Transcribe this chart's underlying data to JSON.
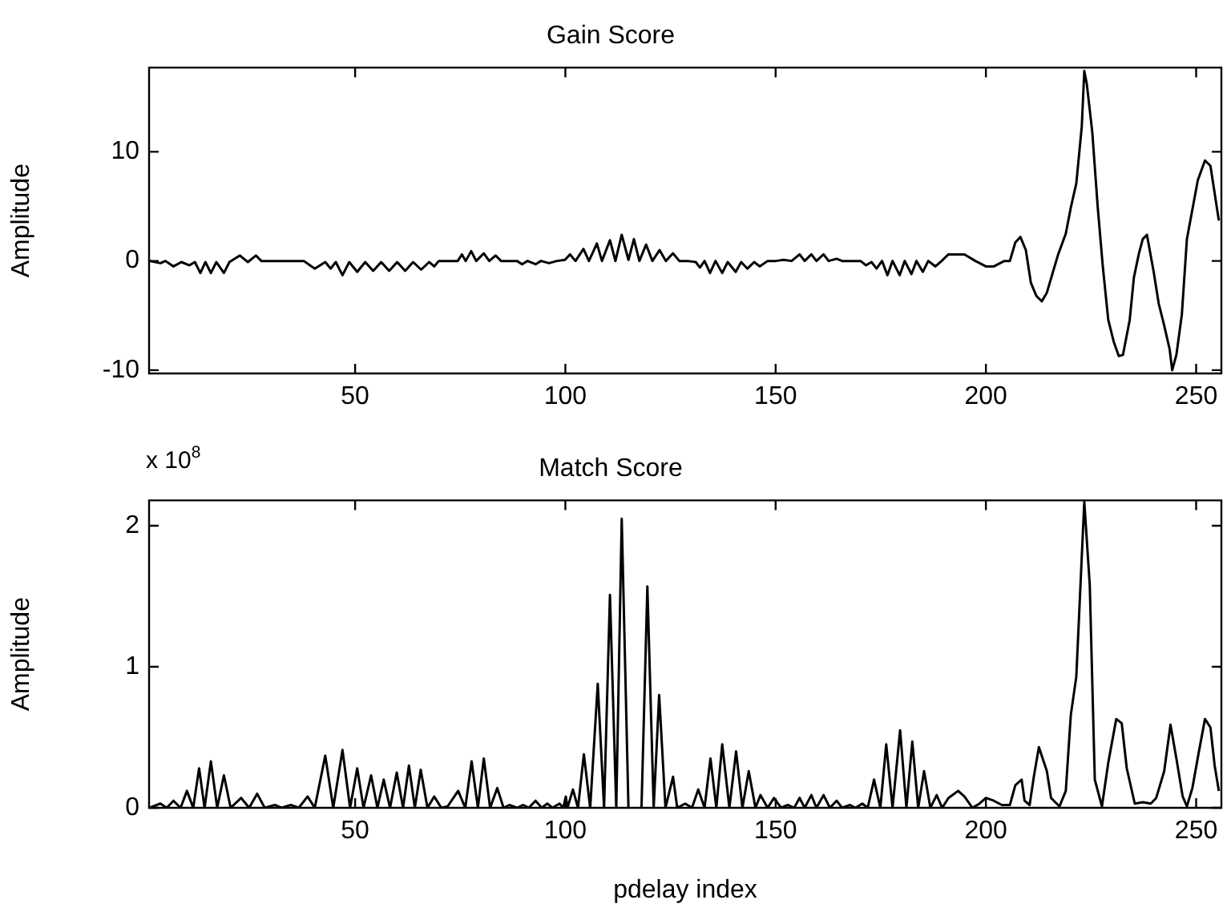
{
  "chart_data": [
    {
      "type": "line",
      "title": "Gain Score",
      "ylabel": "Amplitude",
      "color": "#000000",
      "xlim": [
        1,
        256
      ],
      "xticks": [
        50,
        100,
        150,
        200,
        250
      ],
      "ylim": [
        -10.3,
        17.7
      ],
      "yticks": [
        -10,
        0,
        10
      ],
      "x": [
        1.1,
        3.7,
        4.9,
        6.8,
        8.7,
        10.6,
        11.9,
        13.2,
        14.4,
        15.7,
        17,
        18.8,
        20.1,
        22.6,
        24.5,
        26.4,
        27.7,
        37.8,
        40.4,
        42.9,
        44.2,
        45.4,
        47,
        48.6,
        50.5,
        52.4,
        54.3,
        56.2,
        58.1,
        60,
        61.9,
        63.8,
        65.7,
        67.6,
        68.8,
        69.9,
        74.4,
        75.4,
        76.3,
        77.6,
        78.8,
        80.6,
        81.9,
        83.4,
        84.7,
        88.5,
        89.7,
        91,
        92.9,
        94.2,
        96.1,
        98,
        99.9,
        101.1,
        102.4,
        104.3,
        105.6,
        107.5,
        108.7,
        110.6,
        111.9,
        113.4,
        115,
        116.3,
        117.6,
        119.2,
        120.7,
        122.4,
        123.9,
        125.6,
        127.1,
        129,
        131,
        132,
        133.1,
        134.4,
        135.7,
        137.3,
        138.6,
        140.5,
        141.8,
        143.3,
        144.9,
        146.2,
        148.1,
        150,
        151.9,
        153.8,
        155.7,
        156.9,
        158.5,
        159.7,
        161.4,
        162.6,
        164.5,
        165.8,
        170.2,
        171.5,
        172.8,
        174,
        175.3,
        176.6,
        177.8,
        179.5,
        180.7,
        182.3,
        183.5,
        185,
        186.3,
        188,
        189.2,
        191.1,
        194.9,
        197.5,
        200,
        201.9,
        204.4,
        205.7,
        207,
        208.2,
        209.5,
        210.7,
        212,
        213.3,
        214.5,
        215.8,
        217.1,
        219,
        220.2,
        221.5,
        222.8,
        223.4,
        224,
        225.3,
        226.6,
        227.8,
        229.1,
        230.4,
        231.6,
        232.6,
        234.2,
        235.2,
        236.4,
        237.3,
        238.3,
        239.9,
        241.1,
        242.4,
        243.7,
        244.3,
        245.3,
        246.6,
        247.8,
        249.1,
        250.4,
        252.1,
        253.4,
        255.4
      ],
      "values": [
        0,
        -0.2,
        0,
        -0.5,
        -0.1,
        -0.4,
        -0.1,
        -1.1,
        -0.1,
        -1.1,
        -0.1,
        -1.1,
        -0.1,
        0.5,
        -0.1,
        0.5,
        0,
        0,
        -0.7,
        -0.1,
        -0.7,
        -0.1,
        -1.3,
        -0.1,
        -1,
        -0.1,
        -0.9,
        -0.1,
        -0.9,
        -0.1,
        -0.9,
        -0.1,
        -0.8,
        -0.1,
        -0.5,
        0,
        0,
        0.6,
        0,
        0.9,
        0,
        0.7,
        0,
        0.5,
        0,
        0,
        -0.3,
        0,
        -0.3,
        0,
        -0.2,
        0,
        0.1,
        0.6,
        0,
        1.1,
        0,
        1.6,
        0,
        1.9,
        0,
        2.4,
        0.1,
        2,
        0,
        1.5,
        0,
        1,
        0,
        0.7,
        0,
        0,
        -0.1,
        -0.6,
        0,
        -1.1,
        0,
        -1.1,
        -0.1,
        -1,
        -0.1,
        -0.7,
        -0.1,
        -0.5,
        0,
        0,
        0.1,
        0,
        0.6,
        0,
        0.6,
        0,
        0.6,
        0,
        0.2,
        0,
        0,
        -0.4,
        -0.1,
        -0.7,
        0,
        -1.3,
        0,
        -1.3,
        0,
        -1.2,
        0,
        -1,
        0,
        -0.5,
        -0.1,
        0.6,
        0.6,
        0,
        -0.5,
        -0.5,
        0,
        0,
        1.7,
        2.2,
        1,
        -2,
        -3.2,
        -3.7,
        -2.9,
        -1.2,
        0.5,
        2.5,
        4.9,
        7.1,
        12.3,
        17.4,
        16.2,
        11.8,
        4.9,
        -0.5,
        -5.4,
        -7.4,
        -8.7,
        -8.6,
        -5.4,
        -1.5,
        0.7,
        2,
        2.4,
        -1,
        -3.9,
        -5.9,
        -8.1,
        -10,
        -8.6,
        -4.9,
        2,
        4.7,
        7.4,
        9.2,
        8.7,
        3.7
      ]
    },
    {
      "type": "line",
      "title": "Match Score",
      "ylabel": "Amplitude",
      "xlabel": "pdelay index",
      "annotations": [
        "x 10$^{8}$"
      ],
      "color": "#000000",
      "xlim": [
        1,
        256
      ],
      "xticks": [
        50,
        100,
        150,
        200,
        250
      ],
      "ylim": [
        0,
        2.18
      ],
      "yticks": [
        0,
        1,
        2
      ],
      "x": [
        1.1,
        3.7,
        5.2,
        6.8,
        8.5,
        10,
        11.5,
        12.9,
        14.2,
        15.7,
        17.2,
        18.8,
        20.4,
        22.9,
        24.8,
        26.7,
        28.5,
        30.9,
        32.5,
        34.7,
        36.6,
        38.7,
        40.4,
        42.9,
        44.8,
        47,
        48.8,
        50.5,
        52,
        53.8,
        55.3,
        56.8,
        58.3,
        59.9,
        61.4,
        62.8,
        64.2,
        65.6,
        67.2,
        68.8,
        70.5,
        72,
        74.5,
        76.2,
        77.7,
        79.2,
        80.6,
        82.1,
        83.8,
        85.3,
        86.7,
        88.5,
        90,
        91.3,
        92.9,
        94.4,
        95.7,
        96.9,
        98.6,
        99.5,
        100.1,
        100.5,
        101.8,
        103,
        104.4,
        105.9,
        107.7,
        109.2,
        110.6,
        112.1,
        113.4,
        115,
        116.6,
        118.1,
        119.5,
        121,
        122.3,
        123.8,
        125.6,
        126.6,
        128.5,
        130.1,
        131.6,
        133.1,
        134.5,
        135.9,
        137.3,
        139,
        140.6,
        142.1,
        143.6,
        145.2,
        146.4,
        148.1,
        149.6,
        151.3,
        152.9,
        154.4,
        155.7,
        156.9,
        158.5,
        159.7,
        161.4,
        162.9,
        164.5,
        165.8,
        167.7,
        169,
        170.6,
        171.9,
        173.4,
        174.9,
        176.3,
        177.8,
        179.6,
        181.1,
        182.5,
        183.9,
        185.3,
        186.8,
        188.3,
        189.6,
        191.1,
        193.4,
        194.9,
        196.8,
        198.5,
        200,
        201.9,
        203.8,
        205.7,
        207,
        208.5,
        209.2,
        210.4,
        211.4,
        212.6,
        214.5,
        215.5,
        217.5,
        219,
        220.2,
        221.5,
        222.8,
        223.4,
        224.7,
        225.9,
        227.6,
        229.1,
        231,
        232.3,
        233.5,
        235.4,
        237.3,
        239.2,
        240.5,
        242.4,
        243.9,
        245.3,
        246.8,
        247.8,
        249.1,
        250.6,
        252.1,
        253.4,
        254.4,
        255.4
      ],
      "values": [
        0,
        0.03,
        0,
        0.05,
        0,
        0.12,
        0,
        0.28,
        0,
        0.33,
        0,
        0.23,
        0,
        0.07,
        0,
        0.1,
        0,
        0.02,
        0,
        0.02,
        0,
        0.08,
        0,
        0.37,
        0,
        0.41,
        0,
        0.28,
        0,
        0.23,
        0,
        0.2,
        0,
        0.25,
        0,
        0.3,
        0,
        0.27,
        0,
        0.08,
        0,
        0.01,
        0.12,
        0,
        0.33,
        0,
        0.35,
        0,
        0.14,
        0,
        0.02,
        0,
        0.02,
        0,
        0.05,
        0,
        0.03,
        0,
        0.03,
        0,
        0.08,
        0,
        0.13,
        0,
        0.38,
        0,
        0.88,
        0,
        1.51,
        0,
        2.05,
        0,
        null,
        0,
        1.57,
        0,
        0.8,
        0,
        0.22,
        0,
        0.03,
        0,
        0.13,
        0,
        0.35,
        0,
        0.45,
        0,
        0.4,
        0,
        0.26,
        0,
        0.09,
        0,
        0.07,
        0,
        0.02,
        0,
        0.07,
        0,
        0.09,
        0,
        0.09,
        0,
        0.05,
        0,
        0.02,
        0,
        0.03,
        0,
        0.2,
        0,
        0.45,
        0,
        0.55,
        0,
        0.47,
        0,
        0.26,
        0,
        0.09,
        0,
        0.07,
        0.12,
        0.08,
        0,
        0.03,
        0.07,
        0.05,
        0.02,
        0.02,
        0.16,
        0.2,
        0.05,
        0.02,
        0.22,
        0.43,
        0.26,
        0.07,
        0.01,
        0.12,
        0.66,
        0.93,
        1.78,
        2.17,
        1.58,
        0.2,
        0.01,
        0.32,
        0.63,
        0.6,
        0.28,
        0.03,
        0.04,
        0.03,
        0.07,
        0.26,
        0.59,
        0.35,
        0.08,
        0.01,
        0.14,
        0.39,
        0.63,
        0.57,
        0.3,
        0.12
      ]
    }
  ]
}
